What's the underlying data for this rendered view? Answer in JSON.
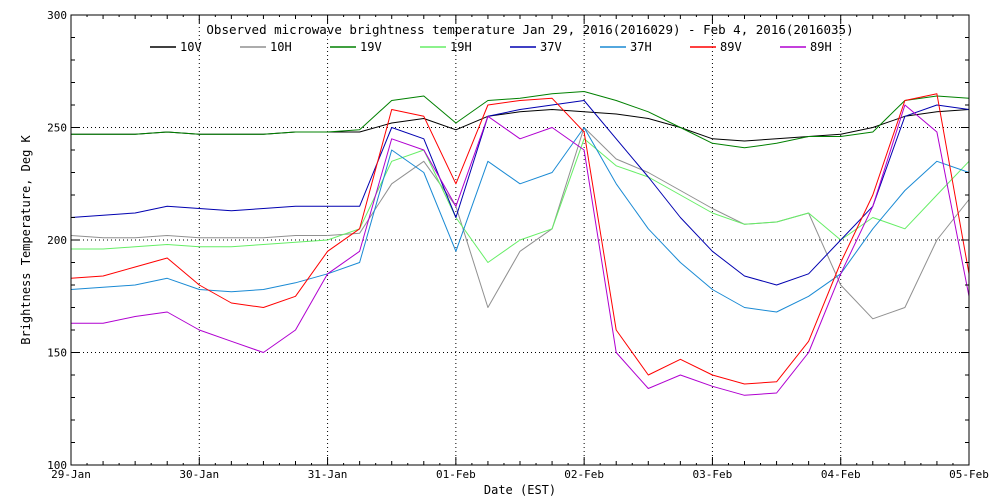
{
  "chart_data": {
    "type": "line",
    "title": "Observed microwave brightness temperature Jan 29, 2016(2016029) - Feb  4, 2016(2016035)",
    "xlabel": "Date (EST)",
    "ylabel": "Brightness Temperature, Deg K",
    "xlim": [
      "2016-01-29",
      "2016-02-05"
    ],
    "ylim": [
      100,
      300
    ],
    "grid": true,
    "legend_position": "top",
    "x_tick_labels": [
      "29-Jan",
      "30-Jan",
      "31-Jan",
      "01-Feb",
      "02-Feb",
      "03-Feb",
      "04-Feb",
      "05-Feb"
    ],
    "y_ticks": [
      100,
      150,
      200,
      250,
      300
    ],
    "x": [
      "01-29 00:00",
      "01-29 06:00",
      "01-29 12:00",
      "01-29 18:00",
      "01-30 00:00",
      "01-30 06:00",
      "01-30 12:00",
      "01-30 18:00",
      "01-31 00:00",
      "01-31 06:00",
      "01-31 12:00",
      "01-31 18:00",
      "02-01 00:00",
      "02-01 06:00",
      "02-01 12:00",
      "02-01 18:00",
      "02-02 00:00",
      "02-02 06:00",
      "02-02 12:00",
      "02-02 18:00",
      "02-03 00:00",
      "02-03 06:00",
      "02-03 12:00",
      "02-03 18:00",
      "02-04 00:00",
      "02-04 06:00",
      "02-04 12:00",
      "02-04 18:00",
      "02-05 00:00"
    ],
    "series": [
      {
        "name": "10V",
        "color": "#000000",
        "values": [
          247,
          247,
          247,
          248,
          247,
          247,
          247,
          248,
          248,
          248,
          252,
          254,
          249,
          255,
          257,
          258,
          257,
          256,
          254,
          250,
          245,
          244,
          245,
          246,
          247,
          250,
          255,
          257,
          258
        ]
      },
      {
        "name": "10H",
        "color": "#909090",
        "values": [
          202,
          201,
          201,
          202,
          201,
          201,
          201,
          202,
          202,
          203,
          225,
          235,
          215,
          170,
          195,
          205,
          250,
          236,
          230,
          222,
          214,
          207,
          208,
          212,
          180,
          165,
          170,
          200,
          218
        ]
      },
      {
        "name": "19V",
        "color": "#008000",
        "values": [
          247,
          247,
          247,
          248,
          247,
          247,
          247,
          248,
          248,
          249,
          262,
          264,
          252,
          262,
          263,
          265,
          266,
          262,
          257,
          250,
          243,
          241,
          243,
          246,
          246,
          248,
          262,
          264,
          263
        ]
      },
      {
        "name": "19H",
        "color": "#66ee66",
        "values": [
          196,
          196,
          197,
          198,
          197,
          197,
          198,
          199,
          200,
          205,
          235,
          240,
          210,
          190,
          200,
          205,
          245,
          233,
          228,
          220,
          212,
          207,
          208,
          212,
          200,
          210,
          205,
          220,
          235
        ]
      },
      {
        "name": "37V",
        "color": "#0000b0",
        "values": [
          210,
          211,
          212,
          215,
          214,
          213,
          214,
          215,
          215,
          215,
          250,
          245,
          210,
          255,
          258,
          260,
          262,
          245,
          228,
          210,
          195,
          184,
          180,
          185,
          200,
          215,
          255,
          260,
          258
        ]
      },
      {
        "name": "37H",
        "color": "#1a8ad4",
        "values": [
          178,
          179,
          180,
          183,
          178,
          177,
          178,
          181,
          185,
          190,
          240,
          230,
          195,
          235,
          225,
          230,
          250,
          225,
          205,
          190,
          178,
          170,
          168,
          175,
          185,
          205,
          222,
          235,
          230
        ]
      },
      {
        "name": "89V",
        "color": "#ff0000",
        "values": [
          183,
          184,
          188,
          192,
          180,
          172,
          170,
          175,
          195,
          205,
          258,
          255,
          225,
          260,
          262,
          263,
          248,
          160,
          140,
          147,
          140,
          136,
          137,
          155,
          190,
          220,
          262,
          265,
          185
        ]
      },
      {
        "name": "89H",
        "color": "#b000d0",
        "values": [
          163,
          163,
          166,
          168,
          160,
          155,
          150,
          160,
          185,
          195,
          245,
          240,
          215,
          255,
          245,
          250,
          240,
          150,
          134,
          140,
          135,
          131,
          132,
          150,
          185,
          215,
          260,
          248,
          175
        ]
      }
    ]
  }
}
